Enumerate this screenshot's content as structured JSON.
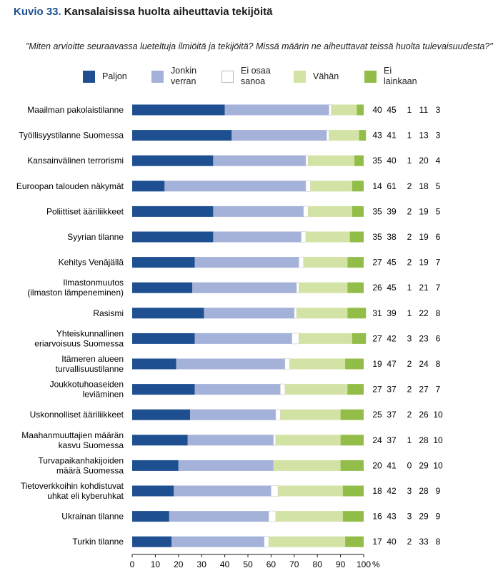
{
  "figure": {
    "number": "Kuvio 33.",
    "title": "Kansalaisissa huolta aiheuttavia tekijöitä",
    "question": "\"Miten arvioitte seuraavassa lueteltuja ilmiöitä ja tekijöitä? Missä määrin ne aiheuttavat teissä huolta tulevaisuudesta?\""
  },
  "colors": {
    "Paljon": "#1d4f91",
    "Jonkin verran": "#a4b1d8",
    "Ei osaa sanoa": "#ffffff",
    "Vähän": "#d3e3a6",
    "Ei lainkaan": "#93bd49"
  },
  "chart_data": {
    "type": "bar",
    "orientation": "horizontal",
    "stacked": true,
    "xlim": [
      0,
      100
    ],
    "x_ticks": [
      "0",
      "10",
      "20",
      "30",
      "40",
      "50",
      "60",
      "70",
      "80",
      "90",
      "100"
    ],
    "x_unit": "%",
    "categories": [
      "Maailman pakolaistilanne",
      "Työllisyystilanne Suomessa",
      "Kansainvälinen terrorismi",
      "Euroopan talouden näkymät",
      "Poliittiset ääriliikkeet",
      "Syyrian tilanne",
      "Kehitys Venäjällä",
      "Ilmastonmuutos\n(ilmaston lämpeneminen)",
      "Rasismi",
      "Yhteiskunnallinen\neriarvoisuus Suomessa",
      "Itämeren alueen\nturvallisuustilanne",
      "Joukkotuhoaseiden\nleviäminen",
      "Uskonnolliset ääriliikkeet",
      "Maahanmuuttajien määrän\nkasvu Suomessa",
      "Turvapaikanhakijoiden\nmäärä Suomessa",
      "Tietoverkkoihin kohdistuvat\nuhkat eli kyberuhkat",
      "Ukrainan tilanne",
      "Turkin tilanne"
    ],
    "series": [
      {
        "name": "Paljon",
        "legend": "Paljon",
        "values": [
          40,
          43,
          35,
          14,
          35,
          35,
          27,
          26,
          31,
          27,
          19,
          27,
          25,
          24,
          20,
          18,
          16,
          17
        ]
      },
      {
        "name": "Jonkin verran",
        "legend": "Jonkin\nverran",
        "values": [
          45,
          41,
          40,
          61,
          39,
          38,
          45,
          45,
          39,
          42,
          47,
          37,
          37,
          37,
          41,
          42,
          43,
          40
        ]
      },
      {
        "name": "Ei osaa sanoa",
        "legend": "Ei osaa\nsanoa",
        "values": [
          1,
          1,
          1,
          2,
          2,
          2,
          2,
          1,
          1,
          3,
          2,
          2,
          2,
          1,
          0,
          3,
          3,
          2
        ]
      },
      {
        "name": "Vähän",
        "legend": "Vähän",
        "values": [
          11,
          13,
          20,
          18,
          19,
          19,
          19,
          21,
          22,
          23,
          24,
          27,
          26,
          28,
          29,
          28,
          29,
          33
        ]
      },
      {
        "name": "Ei lainkaan",
        "legend": "Ei\nlainkaan",
        "values": [
          3,
          3,
          4,
          5,
          5,
          6,
          7,
          7,
          8,
          6,
          8,
          7,
          10,
          10,
          10,
          9,
          9,
          8
        ]
      }
    ]
  }
}
